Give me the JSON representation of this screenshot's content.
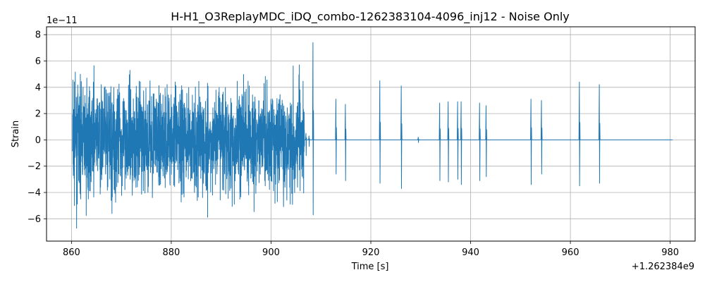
{
  "chart_data": {
    "type": "line",
    "title": "H-H1_O3ReplayMDC_iDQ_combo-1262383104-4096_inj12 - Noise Only",
    "xlabel": "Time [s]",
    "ylabel": "Strain",
    "x_offset_label": "+1.262384e9",
    "y_scale_label": "1e−11",
    "xlim": [
      855,
      985
    ],
    "ylim": [
      -7.7,
      8.6
    ],
    "x_ticks": [
      860,
      880,
      900,
      920,
      940,
      960,
      980
    ],
    "x_tick_labels": [
      "860",
      "880",
      "900",
      "920",
      "940",
      "960",
      "980"
    ],
    "y_ticks": [
      -6,
      -4,
      -2,
      0,
      2,
      4,
      6,
      8
    ],
    "y_tick_labels": [
      "−6",
      "−4",
      "−2",
      "0",
      "2",
      "4",
      "6",
      "8"
    ],
    "grid": true,
    "color": "#1f77b4",
    "series": [
      {
        "segments": [
          {
            "kind": "noise",
            "x": [
              860.2,
              906.7
            ],
            "amplitude": 5.0,
            "peak": 7.4
          },
          {
            "kind": "flat",
            "x": [
              906.7,
              980.5
            ],
            "value": 0.0
          }
        ],
        "spikes": [
          {
            "x": 907.0,
            "max": 0.5,
            "min": -1.2
          },
          {
            "x": 907.6,
            "max": 0.3,
            "min": -0.5
          },
          {
            "x": 908.4,
            "max": 7.4,
            "min": -5.7
          },
          {
            "x": 913.0,
            "max": 3.1,
            "min": -2.6
          },
          {
            "x": 914.9,
            "max": 2.7,
            "min": -3.1
          },
          {
            "x": 921.8,
            "max": 4.5,
            "min": -3.3
          },
          {
            "x": 926.1,
            "max": 4.1,
            "min": -3.7
          },
          {
            "x": 929.5,
            "max": 0.2,
            "min": -0.2
          },
          {
            "x": 933.8,
            "max": 2.8,
            "min": -3.1
          },
          {
            "x": 935.5,
            "max": 2.9,
            "min": -3.2
          },
          {
            "x": 937.4,
            "max": 2.9,
            "min": -3.0
          },
          {
            "x": 938.1,
            "max": 2.9,
            "min": -3.4
          },
          {
            "x": 941.8,
            "max": 2.8,
            "min": -3.1
          },
          {
            "x": 943.1,
            "max": 2.6,
            "min": -2.8
          },
          {
            "x": 952.1,
            "max": 3.1,
            "min": -3.4
          },
          {
            "x": 954.2,
            "max": 3.0,
            "min": -2.6
          },
          {
            "x": 961.8,
            "max": 4.4,
            "min": -3.5
          },
          {
            "x": 965.8,
            "max": 4.2,
            "min": -3.3
          }
        ]
      }
    ]
  }
}
